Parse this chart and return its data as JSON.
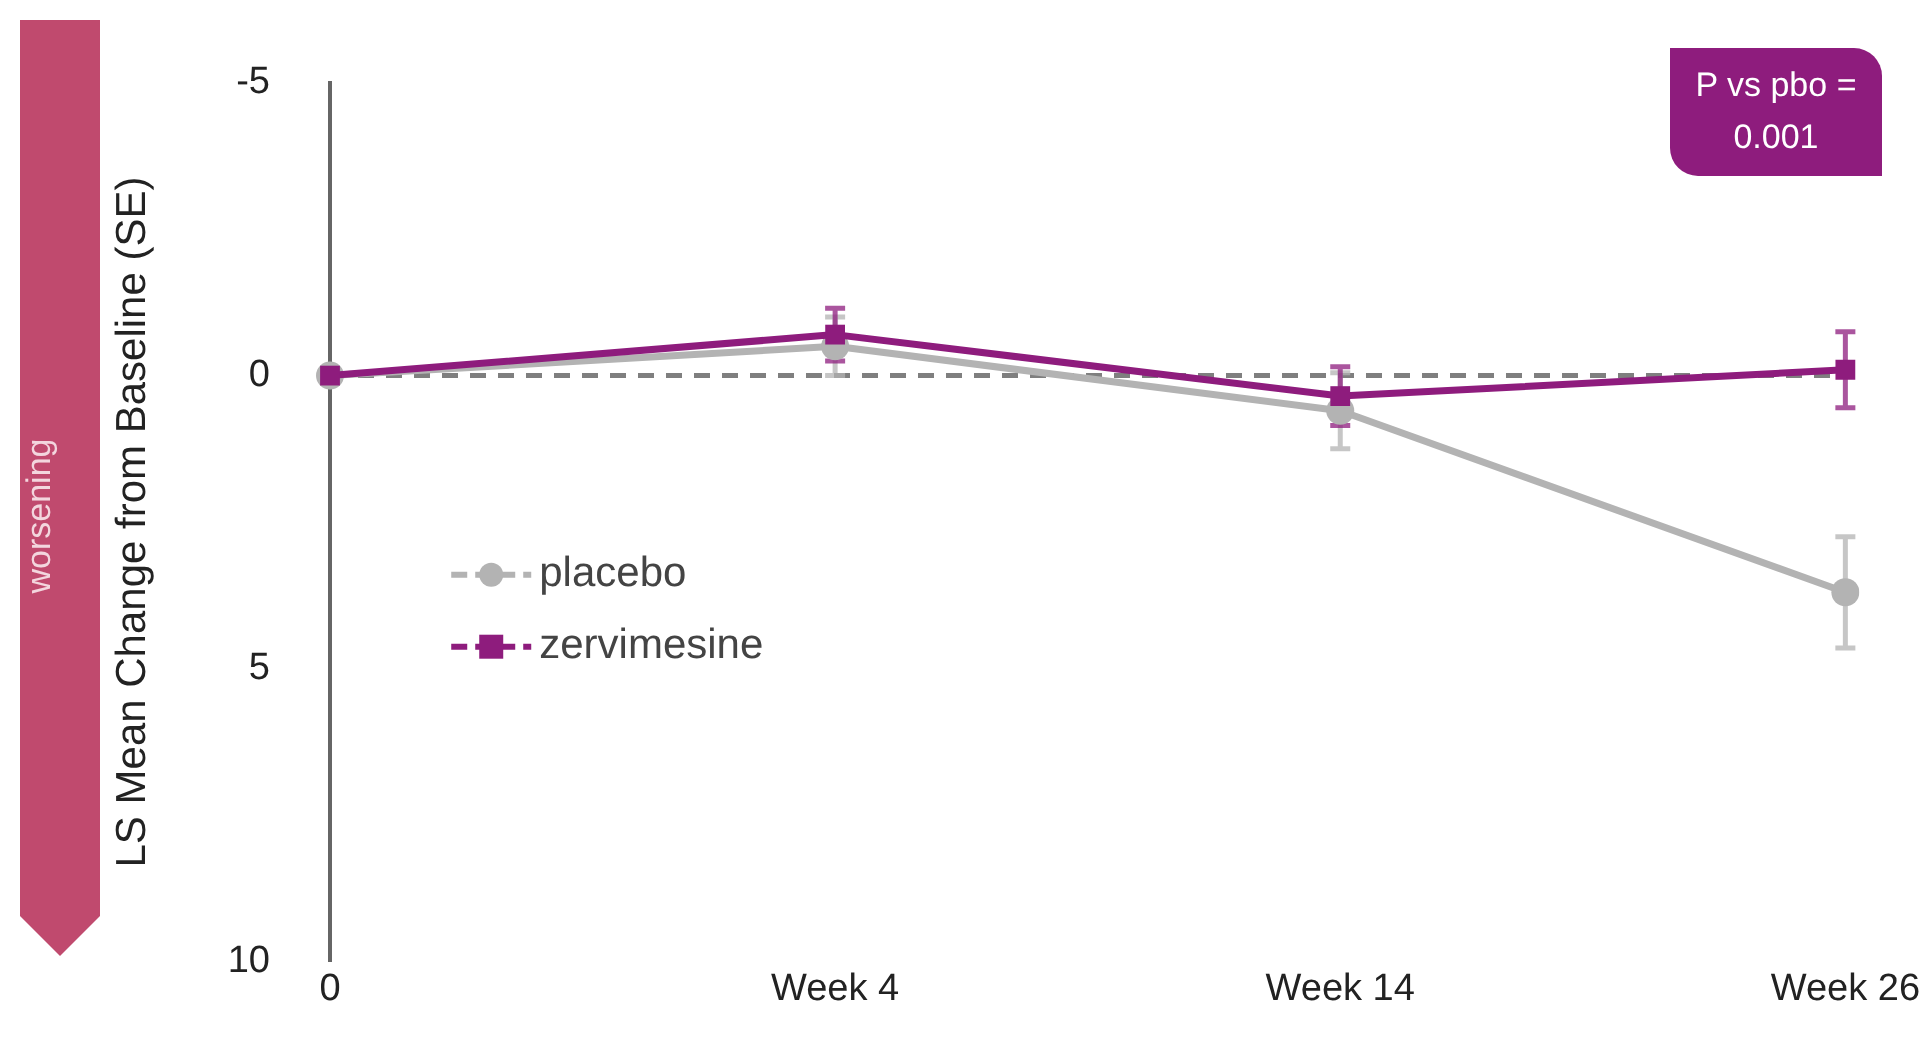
{
  "chart_data": {
    "type": "line",
    "ylabel": "LS Mean Change from Baseline (SE)",
    "categories": [
      "0",
      "Week 4",
      "Week 14",
      "Week 26"
    ],
    "ylim": [
      10,
      -5
    ],
    "yticks": [
      -5,
      0,
      5,
      10
    ],
    "series": [
      {
        "name": "placebo",
        "color": "#b3b3b3",
        "marker": "circle",
        "values": [
          0,
          -0.5,
          0.6,
          3.7
        ],
        "errors": [
          null,
          0.5,
          0.65,
          0.95
        ]
      },
      {
        "name": "zervimesine",
        "color": "#8e1c7d",
        "marker": "square",
        "values": [
          0,
          -0.7,
          0.35,
          -0.1
        ],
        "errors": [
          null,
          0.45,
          0.5,
          0.65
        ]
      }
    ],
    "ref_lines": [
      {
        "axis": "y",
        "value": 0,
        "color": "#7f7f7f",
        "line_style": "dashed"
      }
    ],
    "annotations": [
      "P vs pbo = 0.001",
      "worsening"
    ],
    "legend": "left",
    "grid": false,
    "line_style": "solid"
  }
}
